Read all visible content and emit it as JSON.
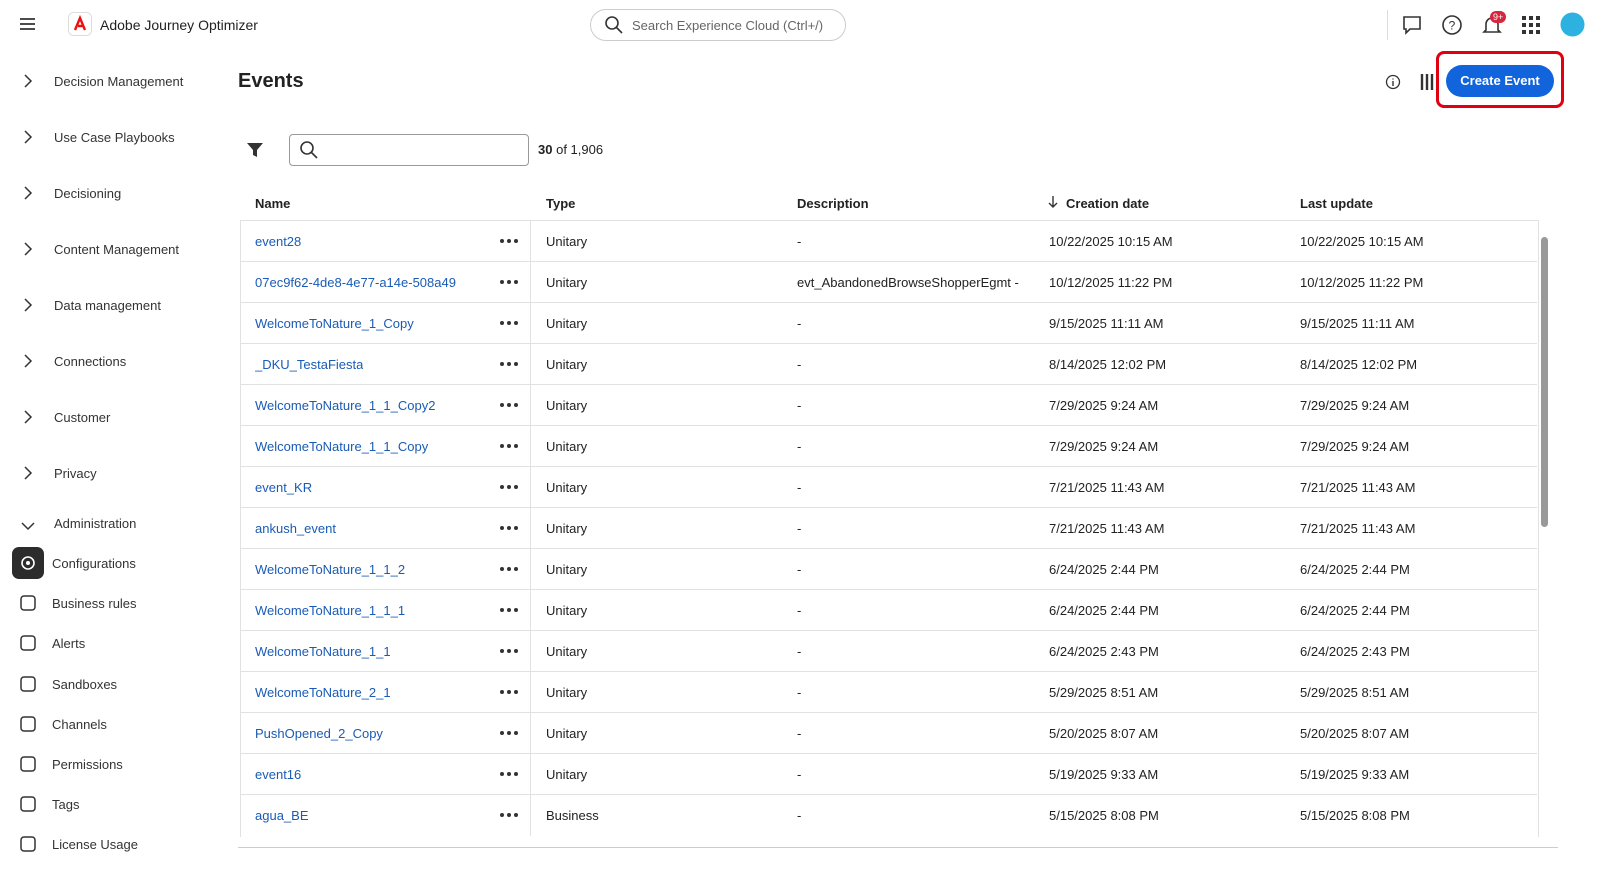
{
  "header": {
    "app_name": "Adobe Journey Optimizer",
    "search_placeholder": "Search Experience Cloud (Ctrl+/)",
    "notification_badge": "9+"
  },
  "sidebar": {
    "sections": [
      "Decision Management",
      "Use Case Playbooks",
      "Decisioning",
      "Content Management",
      "Data management",
      "Connections",
      "Customer",
      "Privacy"
    ],
    "expanded_section": "Administration",
    "items": [
      "Configurations",
      "Business rules",
      "Alerts",
      "Sandboxes",
      "Channels",
      "Permissions",
      "Tags",
      "License Usage"
    ]
  },
  "page": {
    "title": "Events",
    "button": "Create Event",
    "count": "30",
    "total_text": "of 1,906"
  },
  "table": {
    "columns": [
      "Name",
      "Type",
      "Description",
      "Creation date",
      "Last update"
    ],
    "rows": [
      [
        "event28",
        "Unitary",
        "-",
        "10/22/2025 10:15 AM",
        "10/22/2025 10:15 AM"
      ],
      [
        "07ec9f62-4de8-4e77-a14e-508a49",
        "Unitary",
        "evt_AbandonedBrowseShopperEgmt -",
        "10/12/2025 11:22 PM",
        "10/12/2025 11:22 PM"
      ],
      [
        "WelcomeToNature_1_Copy",
        "Unitary",
        "-",
        "9/15/2025 11:11 AM",
        "9/15/2025 11:11 AM"
      ],
      [
        "_DKU_TestaFiesta",
        "Unitary",
        "-",
        "8/14/2025 12:02 PM",
        "8/14/2025 12:02 PM"
      ],
      [
        "WelcomeToNature_1_1_Copy2",
        "Unitary",
        "-",
        "7/29/2025 9:24 AM",
        "7/29/2025 9:24 AM"
      ],
      [
        "WelcomeToNature_1_1_Copy",
        "Unitary",
        "-",
        "7/29/2025 9:24 AM",
        "7/29/2025 9:24 AM"
      ],
      [
        "event_KR",
        "Unitary",
        "-",
        "7/21/2025 11:43 AM",
        "7/21/2025 11:43 AM"
      ],
      [
        "ankush_event",
        "Unitary",
        "-",
        "7/21/2025 11:43 AM",
        "7/21/2025 11:43 AM"
      ],
      [
        "WelcomeToNature_1_1_2",
        "Unitary",
        "-",
        "6/24/2025 2:44 PM",
        "6/24/2025 2:44 PM"
      ],
      [
        "WelcomeToNature_1_1_1",
        "Unitary",
        "-",
        "6/24/2025 2:44 PM",
        "6/24/2025 2:44 PM"
      ],
      [
        "WelcomeToNature_1_1",
        "Unitary",
        "-",
        "6/24/2025 2:43 PM",
        "6/24/2025 2:43 PM"
      ],
      [
        "WelcomeToNature_2_1",
        "Unitary",
        "-",
        "5/29/2025 8:51 AM",
        "5/29/2025 8:51 AM"
      ],
      [
        "PushOpened_2_Copy",
        "Unitary",
        "-",
        "5/20/2025 8:07 AM",
        "5/20/2025 8:07 AM"
      ],
      [
        "event16",
        "Unitary",
        "-",
        "5/19/2025 9:33 AM",
        "5/19/2025 9:33 AM"
      ],
      [
        "agua_BE",
        "Business",
        "-",
        "5/15/2025 8:08 PM",
        "5/15/2025 8:08 PM"
      ]
    ]
  }
}
